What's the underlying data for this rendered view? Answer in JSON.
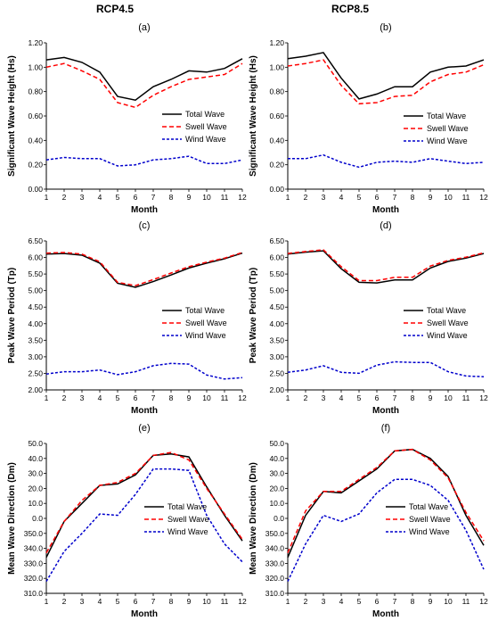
{
  "columns": [
    "RCP4.5",
    "RCP8.5"
  ],
  "styles": {
    "total": {
      "color": "#000000",
      "dash": ""
    },
    "swell": {
      "color": "#ff0000",
      "dash": "5,3"
    },
    "wind": {
      "color": "#0000cc",
      "dash": "3,2"
    }
  },
  "chart_data": [
    {
      "type": "line",
      "panel_label": "(a)",
      "x": [
        1,
        2,
        3,
        4,
        5,
        6,
        7,
        8,
        9,
        10,
        11,
        12
      ],
      "xlabel": "Month",
      "ylabel": "Significant Wave Height (Hs)",
      "ylim": [
        0,
        1.2
      ],
      "yticks": [
        "0.00",
        "0.20",
        "0.40",
        "0.60",
        "0.80",
        "1.00",
        "1.20"
      ],
      "series": [
        {
          "name": "Total Wave",
          "style": "total",
          "values": [
            1.06,
            1.08,
            1.04,
            0.96,
            0.76,
            0.73,
            0.84,
            0.9,
            0.97,
            0.96,
            0.99,
            1.07
          ]
        },
        {
          "name": "Swell Wave",
          "style": "swell",
          "values": [
            1.0,
            1.03,
            0.97,
            0.9,
            0.71,
            0.67,
            0.77,
            0.84,
            0.9,
            0.92,
            0.94,
            1.03
          ]
        },
        {
          "name": "Wind Wave",
          "style": "wind",
          "values": [
            0.24,
            0.26,
            0.25,
            0.25,
            0.19,
            0.2,
            0.24,
            0.25,
            0.27,
            0.21,
            0.21,
            0.24
          ]
        }
      ]
    },
    {
      "type": "line",
      "panel_label": "(b)",
      "x": [
        1,
        2,
        3,
        4,
        5,
        6,
        7,
        8,
        9,
        10,
        11,
        12
      ],
      "xlabel": "Month",
      "ylabel": "Significant Wave Height (Hs)",
      "ylim": [
        0,
        1.2
      ],
      "yticks": [
        "0.00",
        "0.20",
        "0.40",
        "0.60",
        "0.80",
        "1.00",
        "1.20"
      ],
      "series": [
        {
          "name": "Total Wave",
          "style": "total",
          "values": [
            1.07,
            1.09,
            1.12,
            0.91,
            0.74,
            0.78,
            0.84,
            0.84,
            0.96,
            1.0,
            1.01,
            1.06
          ]
        },
        {
          "name": "Swell Wave",
          "style": "swell",
          "values": [
            1.01,
            1.03,
            1.06,
            0.85,
            0.7,
            0.71,
            0.76,
            0.77,
            0.88,
            0.94,
            0.96,
            1.02
          ]
        },
        {
          "name": "Wind Wave",
          "style": "wind",
          "values": [
            0.25,
            0.25,
            0.28,
            0.22,
            0.18,
            0.22,
            0.23,
            0.22,
            0.25,
            0.23,
            0.21,
            0.22
          ]
        }
      ]
    },
    {
      "type": "line",
      "panel_label": "(c)",
      "x": [
        1,
        2,
        3,
        4,
        5,
        6,
        7,
        8,
        9,
        10,
        11,
        12
      ],
      "xlabel": "Month",
      "ylabel": "Peak Wave Period (Tp)",
      "ylim": [
        2.0,
        6.5
      ],
      "yticks": [
        "2.00",
        "2.50",
        "3.00",
        "3.50",
        "4.00",
        "4.50",
        "5.00",
        "5.50",
        "6.00",
        "6.50"
      ],
      "series": [
        {
          "name": "Total Wave",
          "style": "total",
          "values": [
            6.1,
            6.12,
            6.07,
            5.83,
            5.22,
            5.1,
            5.27,
            5.47,
            5.68,
            5.83,
            5.96,
            6.13
          ]
        },
        {
          "name": "Swell Wave",
          "style": "swell",
          "values": [
            6.13,
            6.15,
            6.1,
            5.87,
            5.25,
            5.15,
            5.33,
            5.53,
            5.72,
            5.86,
            5.98,
            6.15
          ]
        },
        {
          "name": "Wind Wave",
          "style": "wind",
          "values": [
            2.48,
            2.55,
            2.55,
            2.6,
            2.46,
            2.55,
            2.73,
            2.8,
            2.78,
            2.45,
            2.33,
            2.37
          ]
        }
      ]
    },
    {
      "type": "line",
      "panel_label": "(d)",
      "x": [
        1,
        2,
        3,
        4,
        5,
        6,
        7,
        8,
        9,
        10,
        11,
        12
      ],
      "xlabel": "Month",
      "ylabel": "Peak Wave Period (Tp)",
      "ylim": [
        2.0,
        6.5
      ],
      "yticks": [
        "2.00",
        "2.50",
        "3.00",
        "3.50",
        "4.00",
        "4.50",
        "5.00",
        "5.50",
        "6.00",
        "6.50"
      ],
      "series": [
        {
          "name": "Total Wave",
          "style": "total",
          "values": [
            6.1,
            6.16,
            6.2,
            5.66,
            5.25,
            5.23,
            5.32,
            5.32,
            5.68,
            5.88,
            5.98,
            6.12
          ]
        },
        {
          "name": "Swell Wave",
          "style": "swell",
          "values": [
            6.12,
            6.18,
            6.23,
            5.72,
            5.3,
            5.3,
            5.4,
            5.4,
            5.74,
            5.91,
            6.01,
            6.14
          ]
        },
        {
          "name": "Wind Wave",
          "style": "wind",
          "values": [
            2.53,
            2.6,
            2.73,
            2.53,
            2.5,
            2.75,
            2.85,
            2.83,
            2.83,
            2.55,
            2.42,
            2.4
          ]
        }
      ]
    },
    {
      "type": "line",
      "panel_label": "(e)",
      "x": [
        1,
        2,
        3,
        4,
        5,
        6,
        7,
        8,
        9,
        10,
        11,
        12
      ],
      "xlabel": "Month",
      "ylabel": "Mean Wave Direction (Dm)",
      "yticks": [
        "310.0",
        "320.0",
        "330.0",
        "340.0",
        "350.0",
        "0.0",
        "10.0",
        "20.0",
        "30.0",
        "40.0",
        "50.0"
      ],
      "series": [
        {
          "name": "Total Wave",
          "style": "total",
          "values": [
            334,
            358,
            370,
            382,
            383,
            389,
            402,
            403,
            401,
            381,
            362,
            345
          ]
        },
        {
          "name": "Swell Wave",
          "style": "swell",
          "values": [
            337,
            358,
            372,
            382,
            384,
            390,
            402,
            404,
            399,
            380,
            363,
            346
          ]
        },
        {
          "name": "Wind Wave",
          "style": "wind",
          "values": [
            318,
            338,
            350,
            363,
            362,
            376,
            393,
            393,
            392,
            362,
            343,
            331
          ]
        }
      ]
    },
    {
      "type": "line",
      "panel_label": "(f)",
      "x": [
        1,
        2,
        3,
        4,
        5,
        6,
        7,
        8,
        9,
        10,
        11,
        12
      ],
      "xlabel": "Month",
      "ylabel": "Mean Wave Direction (Dm)",
      "yticks": [
        "310.0",
        "320.0",
        "330.0",
        "340.0",
        "350.0",
        "0.0",
        "10.0",
        "20.0",
        "30.0",
        "40.0",
        "50.0"
      ],
      "series": [
        {
          "name": "Total Wave",
          "style": "total",
          "values": [
            334,
            362,
            378,
            377,
            385,
            393,
            405,
            406,
            400,
            388,
            362,
            342
          ]
        },
        {
          "name": "Swell Wave",
          "style": "swell",
          "values": [
            337,
            365,
            378,
            378,
            386,
            394,
            405,
            406,
            399,
            387,
            364,
            345
          ]
        },
        {
          "name": "Wind Wave",
          "style": "wind",
          "values": [
            318,
            343,
            362,
            358,
            363,
            377,
            386,
            386,
            382,
            372,
            352,
            326
          ]
        }
      ]
    }
  ]
}
